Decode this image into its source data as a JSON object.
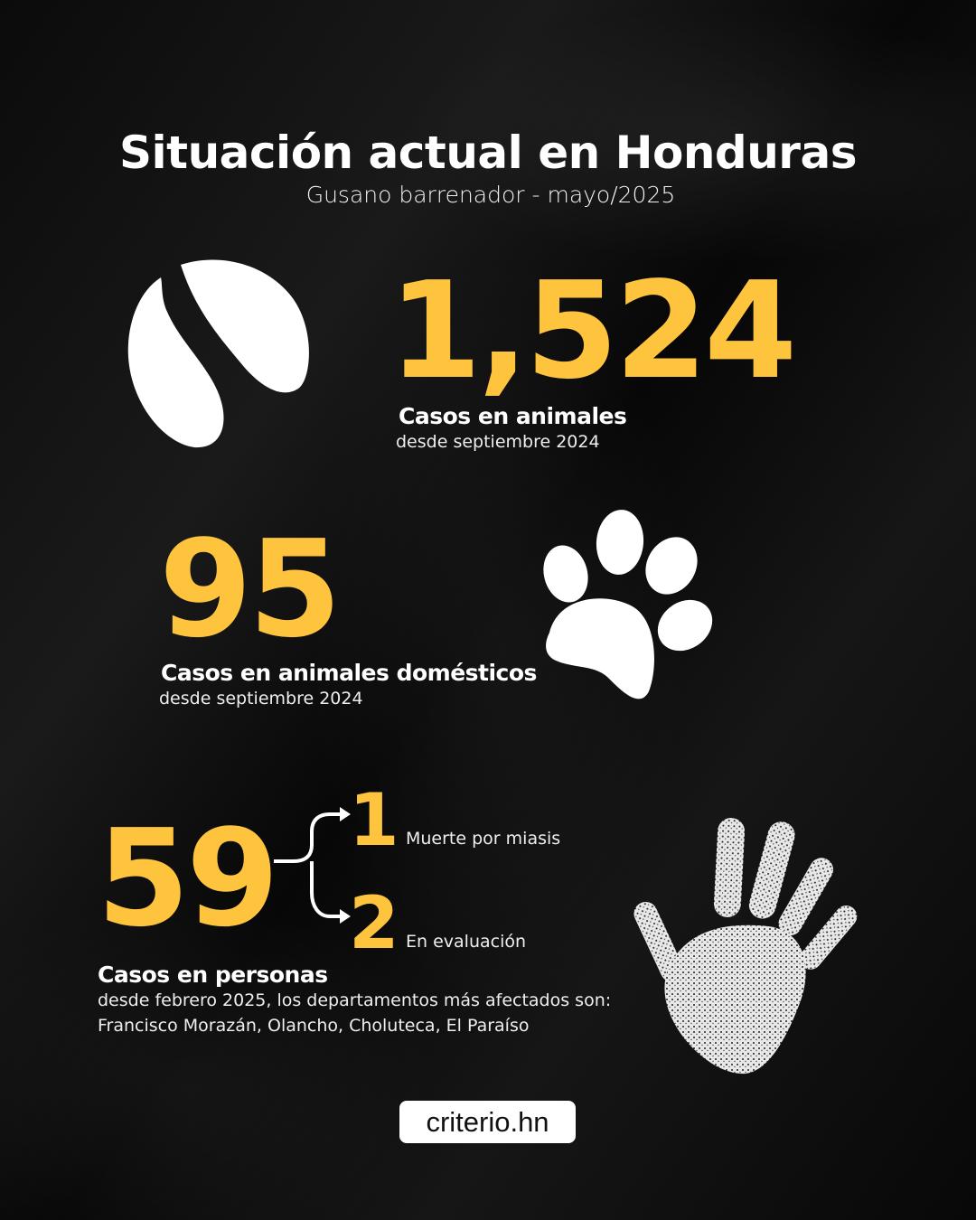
{
  "header": {
    "title": "Situación actual en Honduras",
    "subtitle": "Gusano barrenador - mayo/2025"
  },
  "stats": [
    {
      "value": "1,524",
      "label": "Casos en animales",
      "note": "desde septiembre 2024",
      "icon": "hoof-icon"
    },
    {
      "value": "95",
      "label": "Casos en animales domésticos",
      "note": "desde septiembre 2024",
      "icon": "paw-icon"
    },
    {
      "value": "59",
      "label": "Casos en personas",
      "note": "desde febrero 2025, los departamentos más afectados son:",
      "note2": "Francisco Morazán, Olancho, Choluteca, El Paraíso",
      "icon": "handprint-icon",
      "breakdown": [
        {
          "value": "1",
          "label": "Muerte por miasis"
        },
        {
          "value": "2",
          "label": "En evaluación"
        }
      ]
    }
  ],
  "colors": {
    "accent": "#FFC43D",
    "background": "#0d0d0d"
  },
  "logo": {
    "text": "criterio.hn"
  }
}
